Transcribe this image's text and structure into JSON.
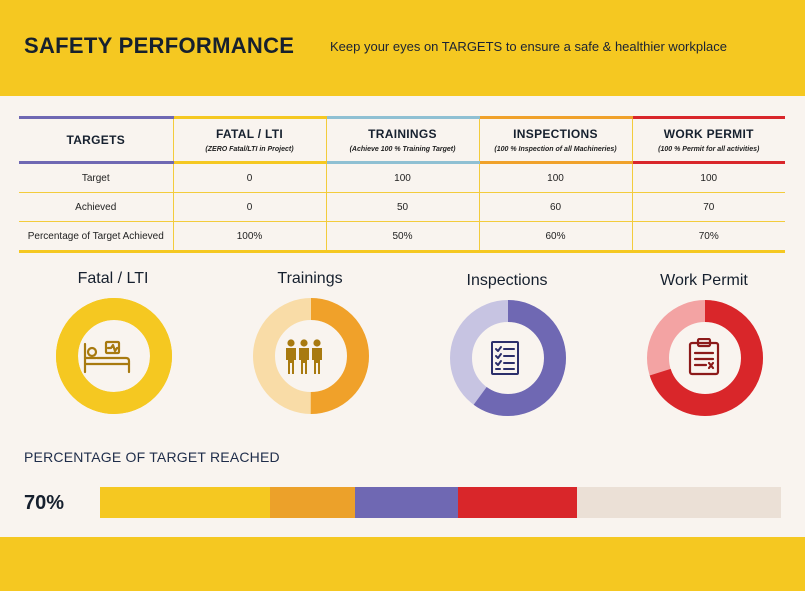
{
  "header": {
    "title": "SAFETY PERFORMANCE",
    "subtitle": "Keep your eyes on TARGETS to ensure a safe & healthier workplace"
  },
  "table": {
    "corner_label": "TARGETS",
    "columns": [
      {
        "title": "FATAL / LTI",
        "note": "(ZERO Fatal/LTI in Project)"
      },
      {
        "title": "TRAININGS",
        "note": "(Achieve 100 % Training Target)"
      },
      {
        "title": "INSPECTIONS",
        "note": "(100 % Inspection of all Machineries)"
      },
      {
        "title": "WORK PERMIT",
        "note": "(100 % Permit for all activities)"
      }
    ],
    "rows": [
      {
        "label": "Target",
        "values": [
          "0",
          "100",
          "100",
          "100"
        ]
      },
      {
        "label": "Achieved",
        "values": [
          "0",
          "50",
          "60",
          "70"
        ]
      },
      {
        "label": "Percentage of Target Achieved",
        "values": [
          "100%",
          "50%",
          "60%",
          "70%"
        ]
      }
    ]
  },
  "donuts": [
    {
      "label": "Fatal / LTI",
      "percent": 100,
      "color": "#f5c821",
      "track": "#f5c821",
      "icon": "hospital-bed-icon"
    },
    {
      "label": "Trainings",
      "percent": 50,
      "color": "#f0a12a",
      "track": "#f9dca7",
      "icon": "people-group-icon"
    },
    {
      "label": "Inspections",
      "percent": 60,
      "color": "#6f68b3",
      "track": "#c7c4e2",
      "icon": "checklist-icon"
    },
    {
      "label": "Work Permit",
      "percent": 70,
      "color": "#d9262a",
      "track": "#f3a3a3",
      "icon": "clipboard-icon"
    }
  ],
  "progress": {
    "title": "PERCENTAGE OF TARGET REACHED",
    "value_label": "70%",
    "percent": 70,
    "segments": [
      {
        "color": "#f5c821",
        "share": 25
      },
      {
        "color": "#eca12a",
        "share": 12.5
      },
      {
        "color": "#6f68b3",
        "share": 15
      },
      {
        "color": "#d9262a",
        "share": 17.5
      }
    ],
    "track_color": "#ebe0d6"
  }
}
